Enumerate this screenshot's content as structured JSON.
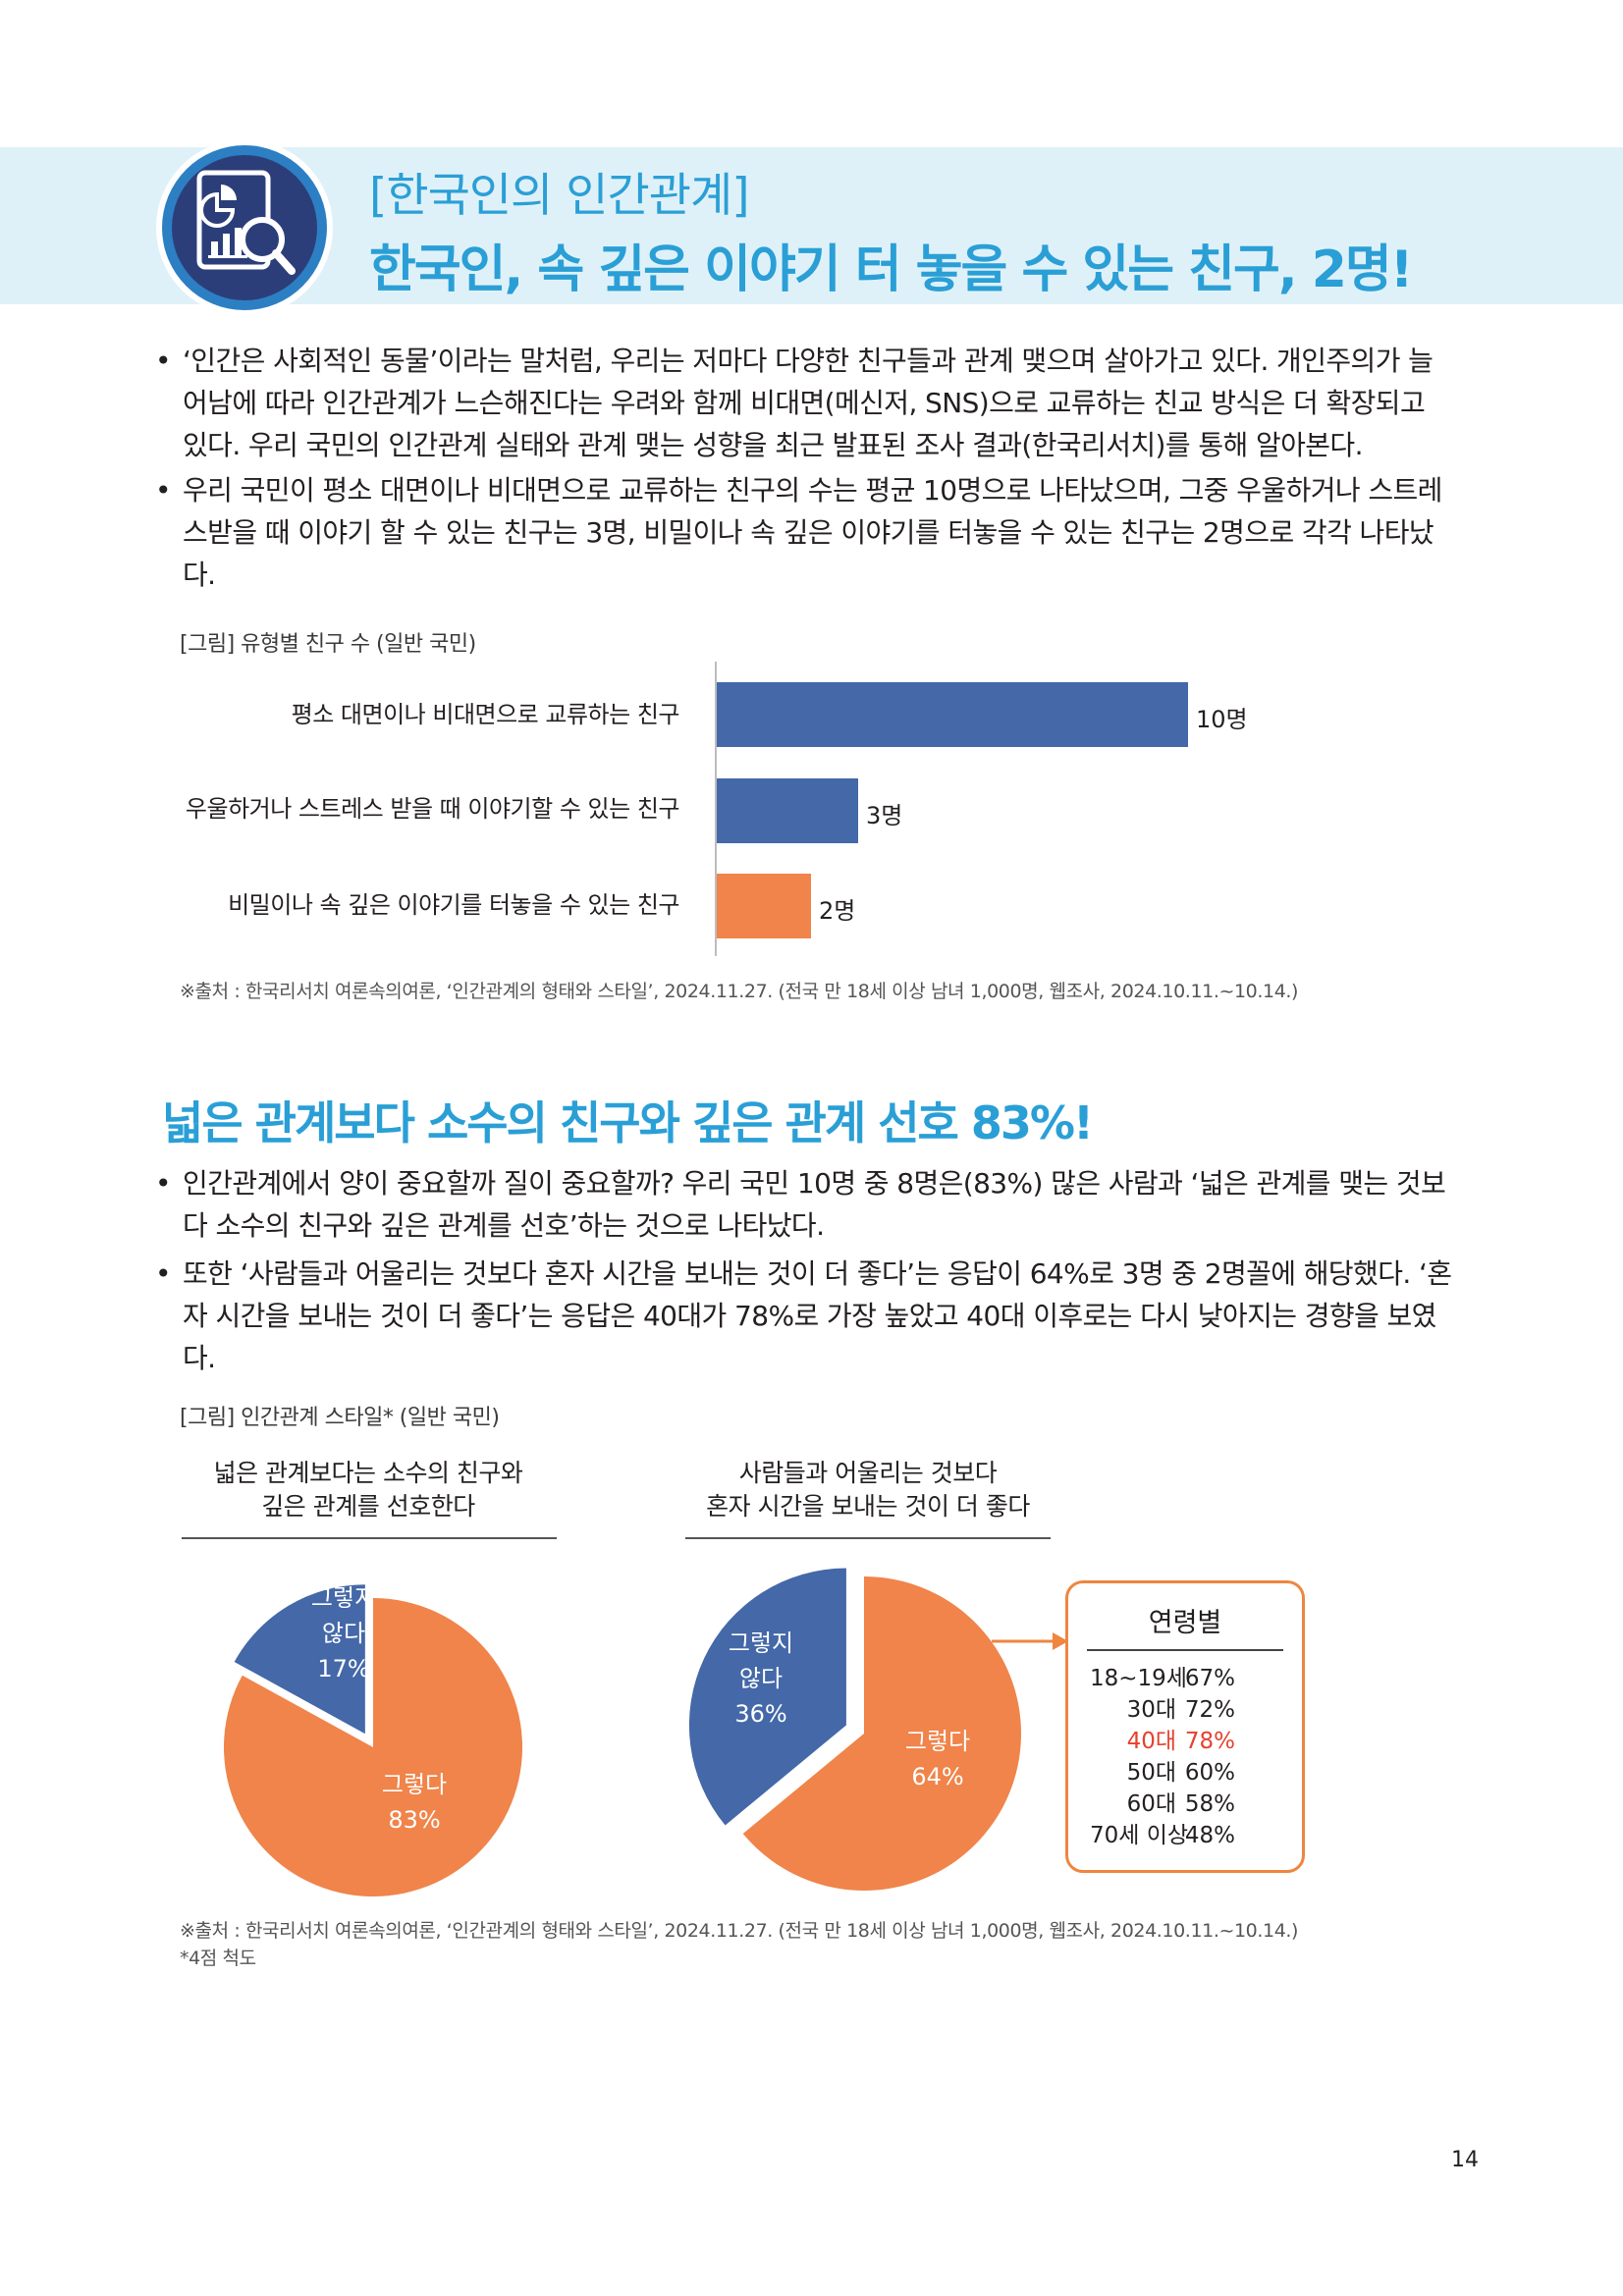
{
  "header": {
    "subtitle": "[한국인의 인간관계]",
    "title": "한국인, 속 깊은 이야기 터 놓을 수 있는 친구, 2명!"
  },
  "intro": {
    "bullets": [
      [
        "‘인간은 사회적인 동물’이라는 말처럼, 우리는 저마다 다양한 친구들과 관계 맺으며 살아가고 있다. 개인주의가 늘",
        "어남에 따라 인간관계가 느슨해진다는 우려와 함께 비대면(메신저, SNS)으로 교류하는 친교 방식은 더 확장되고",
        "있다. 우리 국민의 인간관계 실태와 관계 맺는 성향을 최근 발표된  조사 결과(한국리서치)를 통해 알아본다."
      ],
      [
        "우리 국민이 평소 대면이나 비대면으로 교류하는 친구의 수는 평균 10명으로 나타났으며, 그중 우울하거나 스트레",
        "스받을 때 이야기 할 수 있는 친구는 3명, 비밀이나 속 깊은 이야기를 터놓을 수 있는 친구는 2명으로 각각 나타났",
        "다."
      ]
    ]
  },
  "figure1": {
    "caption": "[그림] 유형별 친구 수 (일반 국민)",
    "source": "※출처 : 한국리서치 여론속의여론, ‘인간관계의 형태와 스타일’, 2024.11.27. (전국 만 18세 이상 남녀 1,000명, 웹조사, 2024.10.11.~10.14.)"
  },
  "section2": {
    "title": "넓은 관계보다 소수의 친구와 깊은 관계 선호 83%!",
    "bullets": [
      [
        "인간관계에서 양이 중요할까 질이 중요할까? 우리 국민 10명 중 8명은(83%) 많은 사람과 ‘넓은 관계를 맺는 것보",
        "다 소수의 친구와 깊은 관계를 선호’하는 것으로 나타났다."
      ],
      [
        "또한 ‘사람들과 어울리는 것보다 혼자 시간을 보내는 것이 더 좋다’는 응답이 64%로 3명 중 2명꼴에 해당했다. ‘혼",
        "자 시간을 보내는 것이 더 좋다’는 응답은 40대가 78%로 가장 높았고 40대 이후로는 다시 낮아지는 경향을 보였",
        "다."
      ]
    ]
  },
  "figure2": {
    "caption": "[그림] 인간관계 스타일* (일반 국민)",
    "source": "※출처 : 한국리서치 여론속의여론, ‘인간관계의 형태와 스타일’, 2024.11.27. (전국 만 18세 이상 남녀 1,000명, 웹조사, 2024.10.11.~10.14.)",
    "note": "*4점 척도",
    "age_box": {
      "title": "연령별",
      "rows": [
        {
          "group": "18~19세",
          "value": "67%",
          "highlight": false
        },
        {
          "group": "30대",
          "value": "72%",
          "highlight": false
        },
        {
          "group": "40대",
          "value": "78%",
          "highlight": true
        },
        {
          "group": "50대",
          "value": "60%",
          "highlight": false
        },
        {
          "group": "60대",
          "value": "58%",
          "highlight": false
        },
        {
          "group": "70세 이상",
          "value": "48%",
          "highlight": false
        }
      ]
    }
  },
  "page_number": "14",
  "colors": {
    "blue": "#4468a8",
    "orange": "#f0844a",
    "accent": "#2a9fd6",
    "highlight": "#e5412f"
  },
  "chart_data": [
    {
      "type": "bar",
      "orientation": "horizontal",
      "categories": [
        "평소 대면이나 비대면으로 교류하는 친구",
        "우울하거나 스트레스 받을 때 이야기할 수 있는 친구",
        "비밀이나 속 깊은 이야기를 터놓을 수 있는 친구"
      ],
      "values": [
        10,
        3,
        2
      ],
      "labels": [
        "10명",
        "3명",
        "2명"
      ],
      "bar_colors": [
        "#4468a8",
        "#4468a8",
        "#f0844a"
      ],
      "xlim": [
        0,
        10
      ]
    },
    {
      "type": "pie",
      "title": "넓은 관계보다는 소수의 친구와 깊은 관계를 선호한다",
      "title_lines": [
        "넓은 관계보다는 소수의 친구와",
        "깊은 관계를 선호한다"
      ],
      "slices": [
        {
          "label": "그렇다",
          "value": 83,
          "text": "83%",
          "color": "#f0844a"
        },
        {
          "label": "그렇지 않다",
          "label_lines": [
            "그렇지",
            "않다"
          ],
          "value": 17,
          "text": "17%",
          "color": "#4468a8"
        }
      ]
    },
    {
      "type": "pie",
      "title": "사람들과 어울리는 것보다 혼자 시간을 보내는 것이 더 좋다",
      "title_lines": [
        "사람들과 어울리는 것보다",
        "혼자 시간을 보내는 것이 더 좋다"
      ],
      "slices": [
        {
          "label": "그렇다",
          "value": 64,
          "text": "64%",
          "color": "#f0844a"
        },
        {
          "label": "그렇지 않다",
          "label_lines": [
            "그렇지",
            "않다"
          ],
          "value": 36,
          "text": "36%",
          "color": "#4468a8"
        }
      ]
    }
  ]
}
